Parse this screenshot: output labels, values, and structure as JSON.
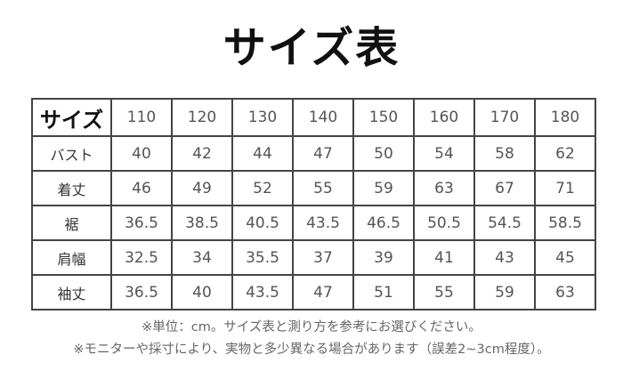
{
  "title": "サイズ表",
  "table": {
    "header_label": "サイズ",
    "sizes": [
      "110",
      "120",
      "130",
      "140",
      "150",
      "160",
      "170",
      "180"
    ],
    "rows": [
      {
        "label": "バスト",
        "values": [
          "40",
          "42",
          "44",
          "47",
          "50",
          "54",
          "58",
          "62"
        ]
      },
      {
        "label": "着丈",
        "values": [
          "46",
          "49",
          "52",
          "55",
          "59",
          "63",
          "67",
          "71"
        ]
      },
      {
        "label": "裾",
        "values": [
          "36.5",
          "38.5",
          "40.5",
          "43.5",
          "46.5",
          "50.5",
          "54.5",
          "58.5"
        ]
      },
      {
        "label": "肩幅",
        "values": [
          "32.5",
          "34",
          "35.5",
          "37",
          "39",
          "41",
          "43",
          "45"
        ]
      },
      {
        "label": "袖丈",
        "values": [
          "36.5",
          "40",
          "43.5",
          "47",
          "51",
          "55",
          "59",
          "63"
        ]
      }
    ]
  },
  "notes": [
    "※単位：cm。サイズ表と測り方を参考にお選びください。",
    "※モニターや採寸により、実物と多少異なる場合があります（誤差2~3cm程度）。"
  ]
}
